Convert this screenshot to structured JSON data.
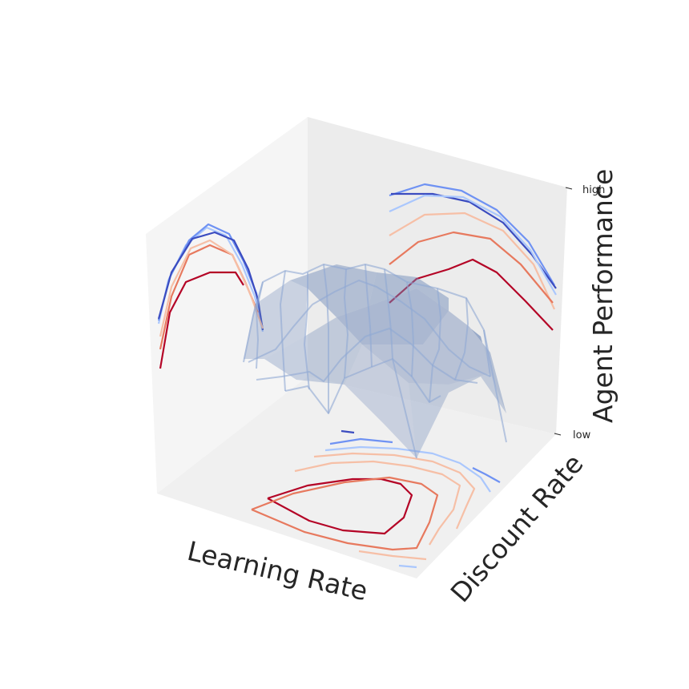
{
  "chart_data": {
    "type": "surface3d",
    "title": "",
    "xlabel": "Learning Rate",
    "ylabel": "Discount Rate",
    "zlabel": "Agent Performance",
    "zticks": [
      "low",
      "high"
    ],
    "grid": true,
    "colors": {
      "surface": "#6f89b8",
      "wireframe": "#8fa8d4",
      "contour_levels": [
        "#3b4cc0",
        "#6f92f3",
        "#aac7fd",
        "#f6bfa6",
        "#e7795e",
        "#b40426"
      ]
    },
    "surface": {
      "description": "smooth dome-shaped performance surface with a noisy wireframe overlay; contour projections on the floor and two back walls",
      "x": [
        0,
        1,
        2,
        3,
        4,
        5,
        6,
        7,
        8,
        9
      ],
      "y": [
        0,
        1,
        2,
        3,
        4,
        5,
        6,
        7,
        8,
        9
      ],
      "z_range": [
        0,
        1
      ]
    }
  }
}
